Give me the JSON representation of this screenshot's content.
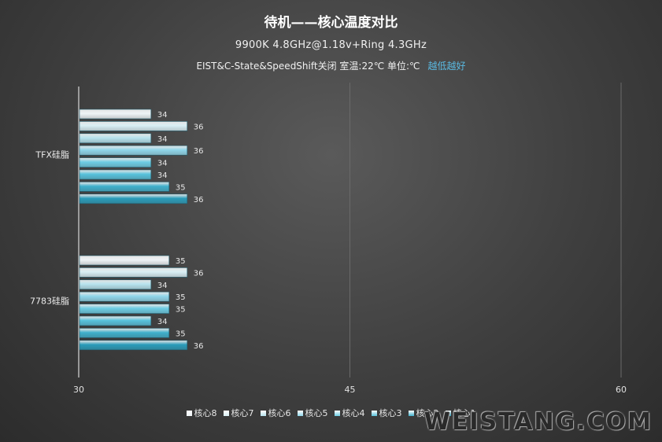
{
  "chart_data": {
    "type": "bar",
    "orientation": "horizontal",
    "title": "待机——核心温度对比",
    "subtitle": "9900K  4.8GHz@1.18v+Ring  4.3GHz",
    "note": "EIST&C-State&SpeedShift关闭  室温:22℃  单位:℃",
    "note_hint": "越低越好",
    "categories": [
      "TFX硅脂",
      "7783硅脂"
    ],
    "x_ticks": [
      "30",
      "45",
      "60"
    ],
    "xlim": [
      30,
      60
    ],
    "grid": true,
    "legend_position": "bottom",
    "series": [
      {
        "name": "核心8",
        "color": "#eef3f6",
        "values": [
          34,
          35
        ]
      },
      {
        "name": "核心7",
        "color": "#d8eef4",
        "values": [
          36,
          36
        ]
      },
      {
        "name": "核心6",
        "color": "#b7e3ee",
        "values": [
          34,
          34
        ]
      },
      {
        "name": "核心5",
        "color": "#8fd6ea",
        "values": [
          36,
          35
        ]
      },
      {
        "name": "核心4",
        "color": "#6dcde4",
        "values": [
          34,
          35
        ]
      },
      {
        "name": "核心3",
        "color": "#57c2dc",
        "values": [
          34,
          34
        ]
      },
      {
        "name": "核心2",
        "color": "#3fb0cc",
        "values": [
          35,
          35
        ]
      },
      {
        "name": "核心1",
        "color": "#2a9cba",
        "values": [
          36,
          36
        ]
      }
    ]
  },
  "watermark": "WEISTANG.COM"
}
